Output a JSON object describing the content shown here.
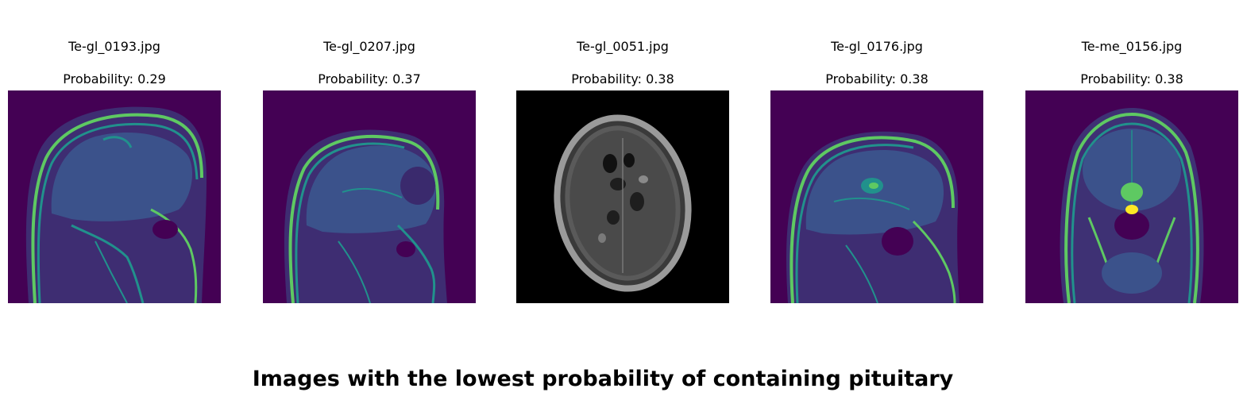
{
  "figure": {
    "title": "Images with the lowest probability of containing pituitary"
  },
  "panels": [
    {
      "filename": "Te-gl_0193.jpg",
      "probability_label": "Probability: 0.29",
      "probability": 0.29,
      "colormap": "viridis",
      "view": "sagittal"
    },
    {
      "filename": "Te-gl_0207.jpg",
      "probability_label": "Probability: 0.37",
      "probability": 0.37,
      "colormap": "viridis",
      "view": "sagittal"
    },
    {
      "filename": "Te-gl_0051.jpg",
      "probability_label": "Probability: 0.38",
      "probability": 0.38,
      "colormap": "grayscale",
      "view": "axial"
    },
    {
      "filename": "Te-gl_0176.jpg",
      "probability_label": "Probability: 0.38",
      "probability": 0.38,
      "colormap": "viridis",
      "view": "sagittal"
    },
    {
      "filename": "Te-me_0156.jpg",
      "probability_label": "Probability: 0.38",
      "probability": 0.38,
      "colormap": "viridis",
      "view": "coronal"
    }
  ],
  "colors": {
    "viridis_background": "#440154",
    "viridis_low": "#3b528b",
    "viridis_mid": "#21918c",
    "viridis_high": "#5ec962",
    "viridis_peak": "#fde725",
    "grayscale_background": "#000000"
  }
}
